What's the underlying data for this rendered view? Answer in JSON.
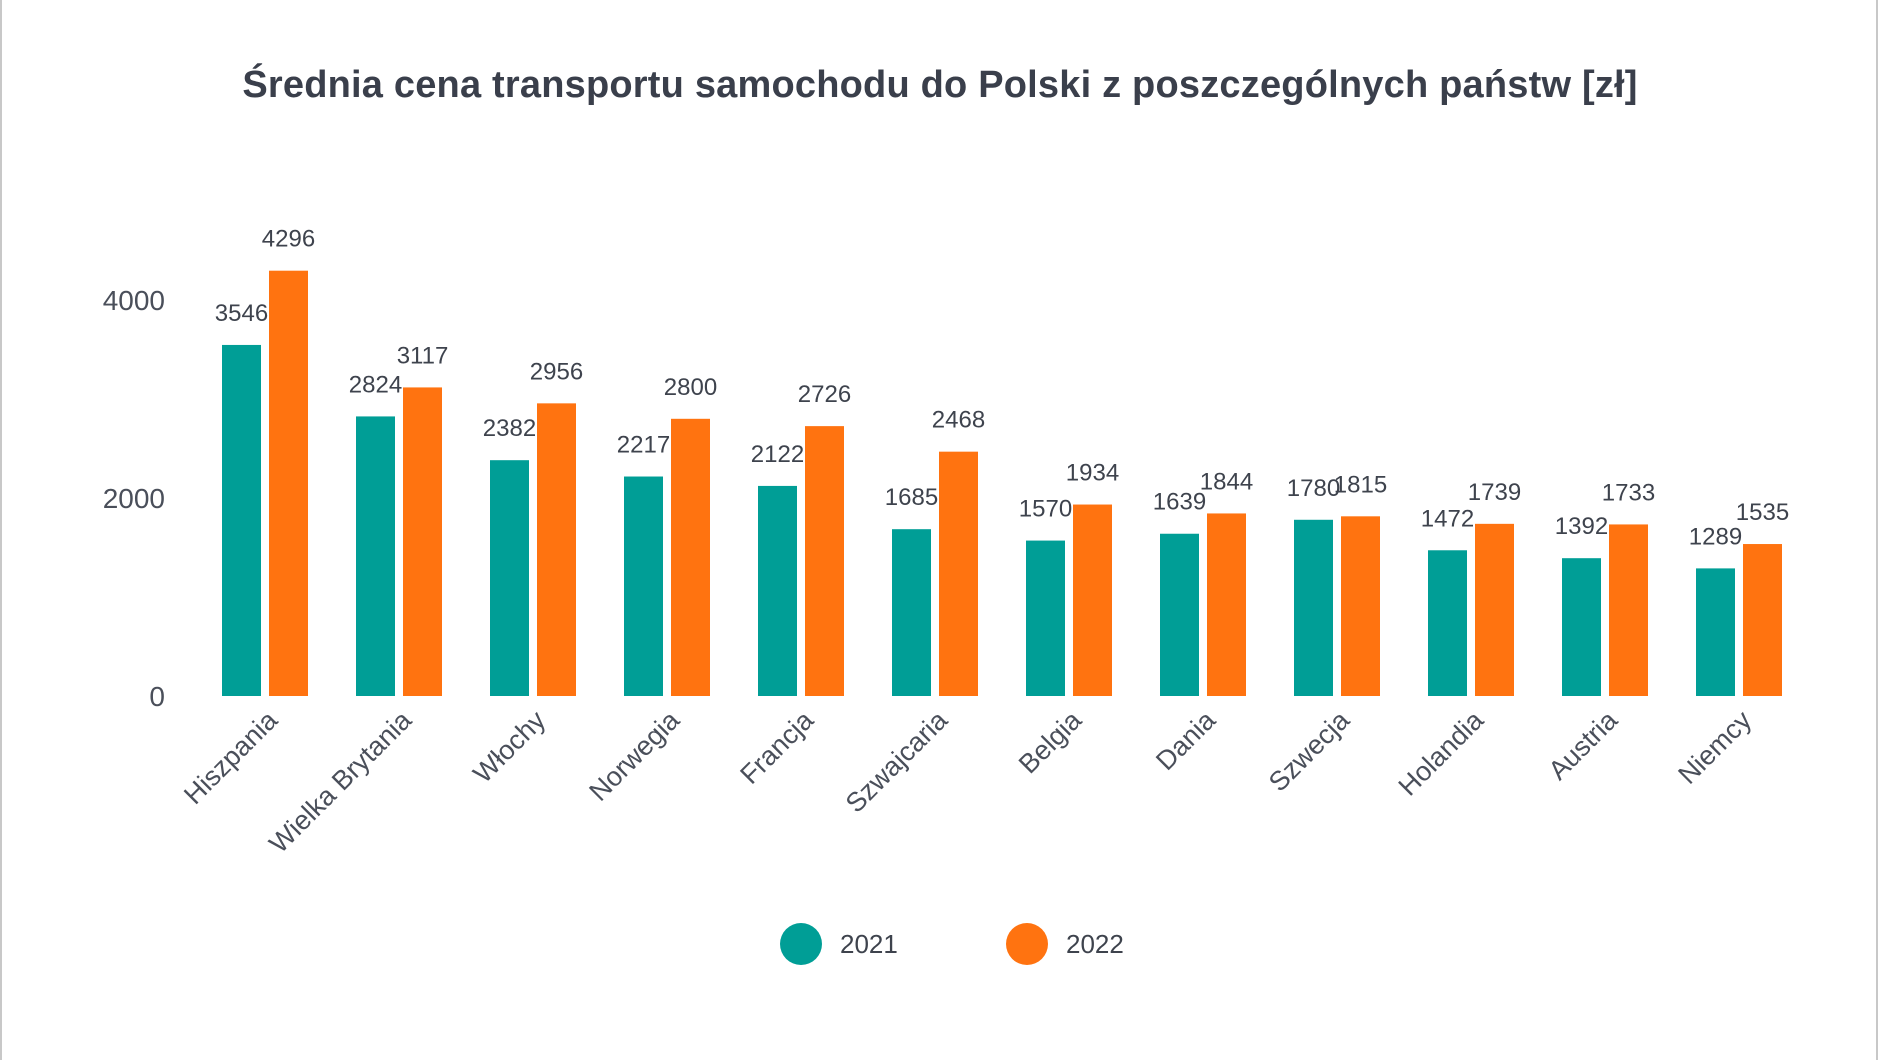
{
  "chart_data": {
    "type": "bar",
    "title": "Średnia cena transportu samochodu do Polski z poszczególnych państw [zł]",
    "xlabel": "",
    "ylabel": "",
    "categories": [
      "Hiszpania",
      "Wielka Brytania",
      "Włochy",
      "Norwegia",
      "Francja",
      "Szwajcaria",
      "Belgia",
      "Dania",
      "Szwecja",
      "Holandia",
      "Austria",
      "Niemcy"
    ],
    "series": [
      {
        "name": "2021",
        "color": "#009e96",
        "values": [
          3546,
          2824,
          2382,
          2217,
          2122,
          1685,
          1570,
          1639,
          1780,
          1472,
          1392,
          1289
        ]
      },
      {
        "name": "2022",
        "color": "#ff7310",
        "values": [
          4296,
          3117,
          2956,
          2800,
          2726,
          2468,
          1934,
          1844,
          1815,
          1739,
          1733,
          1535
        ]
      }
    ],
    "yticks": [
      0,
      2000,
      4000
    ],
    "ylim": [
      0,
      4296
    ],
    "grid": false,
    "legend_position": "bottom-center",
    "data_labels": true
  }
}
